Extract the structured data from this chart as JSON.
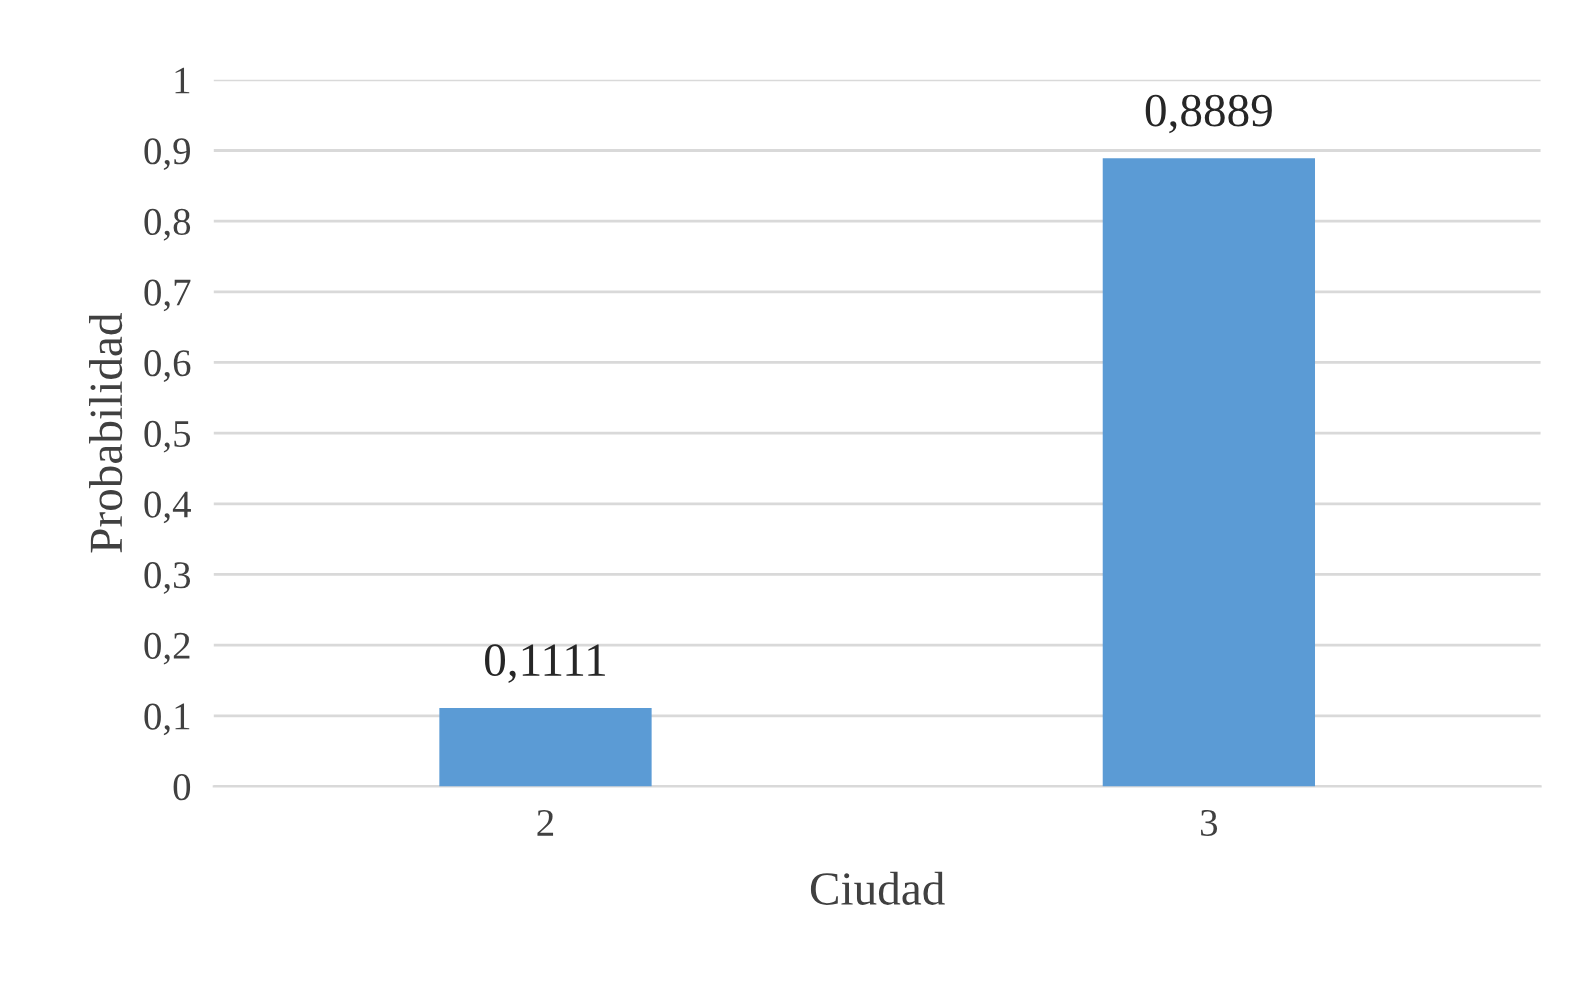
{
  "chart_data": {
    "type": "bar",
    "xlabel": "Ciudad",
    "ylabel": "Probabilidad",
    "categories": [
      "2",
      "3"
    ],
    "series": [
      {
        "color": "#5b9bd5",
        "values": [
          0.1111,
          0.8889
        ]
      }
    ],
    "value_labels": [
      "0,1111",
      "0,8889"
    ],
    "ylim": [
      0,
      1
    ],
    "yticks": [
      0,
      {
        "value": 0.1,
        "label": "0,1"
      },
      {
        "value": 0.2,
        "label": "0,2"
      },
      {
        "value": 0.3,
        "label": "0,3"
      },
      {
        "value": 0.4,
        "label": "0,4"
      },
      {
        "value": 0.5,
        "label": "0,5"
      },
      {
        "value": 0.6,
        "label": "0,6"
      },
      {
        "value": 0.7,
        "label": "0,7"
      },
      {
        "value": 0.8,
        "label": "0,8"
      },
      {
        "value": 0.9,
        "label": "0,9"
      },
      1
    ],
    "grid": "y"
  }
}
